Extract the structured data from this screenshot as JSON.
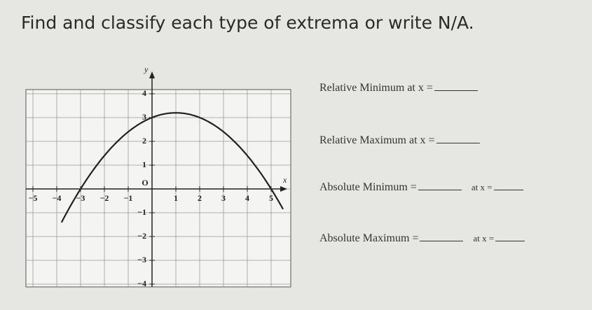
{
  "title": "Find and classify each type of extrema or write N/A.",
  "graph": {
    "x_label": "x",
    "y_label": "y",
    "xticks": [
      "−5",
      "−4",
      "−3",
      "−2",
      "−1",
      "O",
      "1",
      "2",
      "3",
      "4",
      "5"
    ],
    "yticks": [
      "4",
      "3",
      "2",
      "1",
      "−1",
      "−2",
      "−3",
      "−4"
    ]
  },
  "prompts": [
    {
      "label": "Relative Minimum at x ="
    },
    {
      "label": "Relative Maximum at x ="
    },
    {
      "label": "Absolute Minimum =",
      "second": "at x ="
    },
    {
      "label": "Absolute Maximum =",
      "second": "at x ="
    }
  ]
}
